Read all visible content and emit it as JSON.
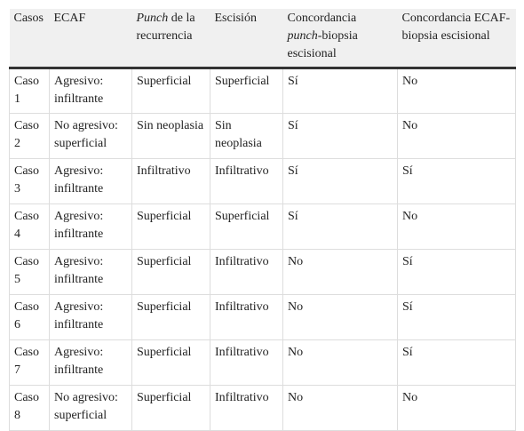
{
  "table": {
    "header": [
      "Casos",
      "ECAF",
      [
        {
          "text": "Punch",
          "italic": true
        },
        {
          "text": " de la recurrencia"
        }
      ],
      "Escisión",
      [
        {
          "text": "Concordancia "
        },
        {
          "text": "punch",
          "italic": true
        },
        {
          "text": "-biopsia escisional"
        }
      ],
      "Concordancia ECAF-biopsia escisional"
    ],
    "rows": [
      [
        "Caso 1",
        "Agresivo: infiltrante",
        "Superficial",
        "Superficial",
        "Sí",
        "No"
      ],
      [
        "Caso 2",
        "No agresivo: superficial",
        "Sin neoplasia",
        "Sin neoplasia",
        "Sí",
        "No"
      ],
      [
        "Caso 3",
        "Agresivo: infiltrante",
        "Infiltrativo",
        "Infiltrativo",
        "Sí",
        "Sí"
      ],
      [
        "Caso 4",
        "Agresivo: infiltrante",
        "Superficial",
        "Superficial",
        "Sí",
        "No"
      ],
      [
        "Caso 5",
        "Agresivo: infiltrante",
        "Superficial",
        "Infiltrativo",
        "No",
        "Sí"
      ],
      [
        "Caso 6",
        "Agresivo: infiltrante",
        "Superficial",
        "Infiltrativo",
        "No",
        "Sí"
      ],
      [
        "Caso 7",
        "Agresivo: infiltrante",
        "Superficial",
        "Infiltrativo",
        "No",
        "Sí"
      ],
      [
        "Caso 8",
        "No agresivo: superficial",
        "Superficial",
        "Infiltrativo",
        "No",
        "No"
      ]
    ]
  }
}
